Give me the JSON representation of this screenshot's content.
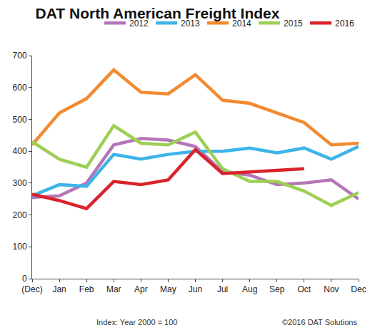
{
  "chart_data": {
    "type": "line",
    "title": "DAT North American Freight Index",
    "annotations": [
      "Index: Year 2000 = 100",
      "©2016 DAT Solutions"
    ],
    "categories": [
      "(Dec)",
      "Jan",
      "Feb",
      "Mar",
      "Apr",
      "May",
      "Jun",
      "Jul",
      "Aug",
      "Sep",
      "Oct",
      "Nov",
      "Dec"
    ],
    "series": [
      {
        "name": "2012",
        "color": "#b576b8",
        "values": [
          255,
          260,
          300,
          420,
          440,
          435,
          415,
          335,
          325,
          295,
          300,
          310,
          250
        ]
      },
      {
        "name": "2013",
        "color": "#3db4e8",
        "values": [
          260,
          295,
          290,
          390,
          375,
          390,
          400,
          400,
          410,
          395,
          410,
          375,
          415
        ]
      },
      {
        "name": "2014",
        "color": "#f28a30",
        "values": [
          420,
          520,
          565,
          655,
          585,
          580,
          640,
          560,
          550,
          520,
          490,
          420,
          425
        ]
      },
      {
        "name": "2015",
        "color": "#9dcf55",
        "values": [
          430,
          375,
          350,
          480,
          425,
          420,
          460,
          345,
          305,
          305,
          275,
          230,
          270
        ]
      },
      {
        "name": "2016",
        "color": "#d9232b",
        "values": [
          265,
          245,
          220,
          305,
          295,
          310,
          405,
          330,
          335,
          340,
          345,
          null,
          null
        ]
      }
    ],
    "ylim": [
      0,
      700
    ],
    "yticks": [
      0,
      100,
      200,
      300,
      400,
      500,
      600,
      700
    ],
    "grid": false,
    "legend": "top"
  }
}
